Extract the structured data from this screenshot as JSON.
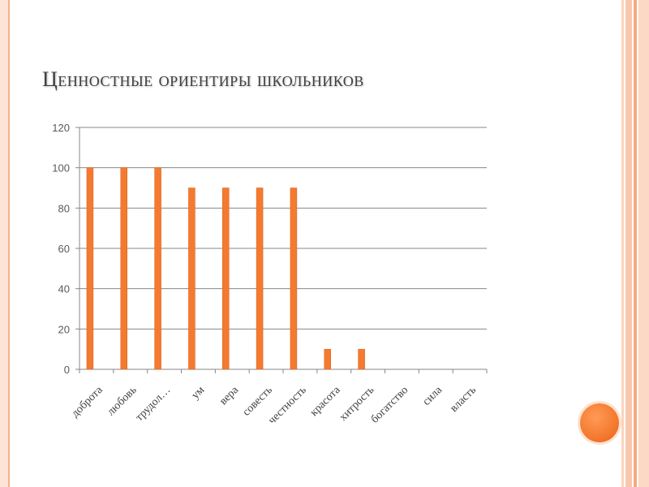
{
  "slide": {
    "title": "Ценностные ориентиры школьников",
    "accent_color": "#f47a2f",
    "decor_icon": "orange-circle-icon"
  },
  "chart_data": {
    "type": "bar",
    "title": "",
    "xlabel": "",
    "ylabel": "",
    "categories": [
      "доброта",
      "любовь",
      "трудол…",
      "ум",
      "вера",
      "совесть",
      "честность",
      "красота",
      "хитрость",
      "богатство",
      "сила",
      "власть"
    ],
    "values": [
      100,
      100,
      100,
      90,
      90,
      90,
      90,
      10,
      10,
      0,
      0,
      0
    ],
    "ylim": [
      0,
      120
    ],
    "yticks": [
      0,
      20,
      40,
      60,
      80,
      100,
      120
    ],
    "grid": true,
    "legend": "none",
    "bar_color": "#f47a2f",
    "grid_color": "#878787"
  }
}
